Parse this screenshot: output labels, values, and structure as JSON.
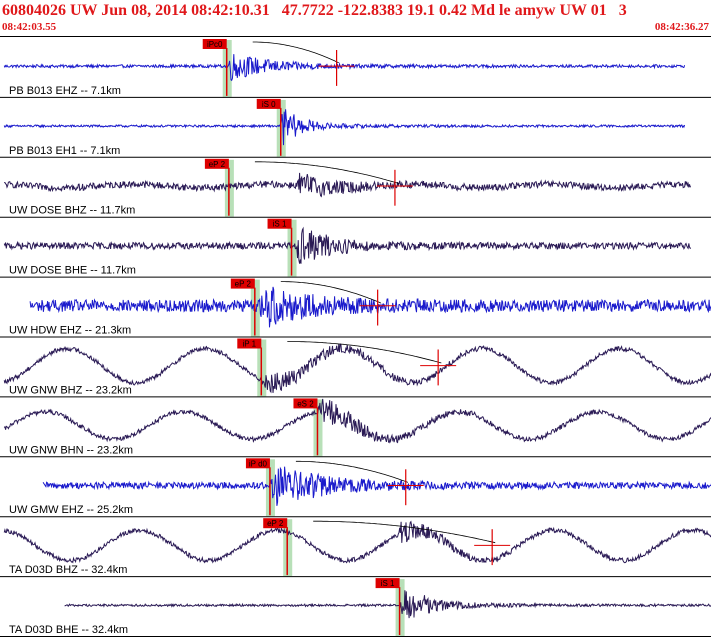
{
  "header": {
    "event_line": "60804026 UW Jun 08, 2014 08:42:10.31   47.7722 -122.8383 19.1 0.42 Md le amyw UW 01   3",
    "start_time": "08:42:03.55",
    "end_time": "08:42:36.27"
  },
  "colors": {
    "header_text": "#e0181b",
    "vertical_trace": "#1a1acc",
    "horizontal_trace": "#2a1a55",
    "pick_marker": "#dd0000",
    "pick_window": "#b8e0b8",
    "coda_curve": "#000000",
    "separator": "#000000"
  },
  "chart_data": {
    "type": "line",
    "title": "60804026 UW Jun 08, 2014 08:42:10.31   47.7722 -122.8383 19.1 0.42 Md le amyw UW 01   3",
    "x_start_label": "08:42:03.55",
    "x_end_label": "08:42:36.27",
    "x_range_seconds": [
      0,
      32.72
    ],
    "series": [
      {
        "name": "PB B013 EHZ -- 7.1km",
        "kind": "vertical",
        "pick": "iPc0",
        "pick_time_s": 10.4,
        "trace_span_s": [
          0.1,
          31.6
        ],
        "energy_s": [
          10.4,
          15.3
        ],
        "amplitude": 0.55,
        "background": 0.05,
        "longperiod": 0.0,
        "has_coda": true
      },
      {
        "name": "PB B013 EH1 -- 7.1km",
        "kind": "horizontal-blue",
        "pick": "iS 0",
        "pick_time_s": 12.9,
        "trace_span_s": [
          0.1,
          31.6
        ],
        "energy_s": [
          12.9,
          15.3
        ],
        "amplitude": 0.75,
        "background": 0.04,
        "longperiod": 0.0,
        "has_coda": false
      },
      {
        "name": "UW DOSE BHZ -- 11.7km",
        "kind": "vertical-dark",
        "pick": "eP 2",
        "pick_time_s": 10.5,
        "trace_span_s": [
          0.1,
          31.9
        ],
        "energy_s": [
          13.6,
          18.0
        ],
        "amplitude": 0.45,
        "background": 0.12,
        "longperiod": 0.06,
        "has_coda": true
      },
      {
        "name": "UW DOSE BHE -- 11.7km",
        "kind": "horizontal",
        "pick": "iS 1",
        "pick_time_s": 13.4,
        "trace_span_s": [
          0.1,
          31.9
        ],
        "energy_s": [
          13.6,
          17.5
        ],
        "amplitude": 0.75,
        "background": 0.12,
        "longperiod": 0.0,
        "has_coda": false
      },
      {
        "name": "UW HDW EHZ -- 21.3km",
        "kind": "vertical",
        "pick": "eP 2",
        "pick_time_s": 11.7,
        "trace_span_s": [
          1.3,
          33.2
        ],
        "energy_s": [
          11.9,
          17.2
        ],
        "amplitude": 0.75,
        "background": 0.22,
        "longperiod": 0.0,
        "has_coda": true
      },
      {
        "name": "UW GNW BHZ -- 23.2km",
        "kind": "horizontal",
        "pick": "iP 1",
        "pick_time_s": 12.0,
        "trace_span_s": [
          0.1,
          33.4
        ],
        "energy_s": [
          12.0,
          20.0
        ],
        "amplitude": 0.35,
        "background": 0.08,
        "longperiod": 0.62,
        "has_coda": true
      },
      {
        "name": "UW GNW BHN -- 23.2km",
        "kind": "horizontal",
        "pick": "eS 2",
        "pick_time_s": 14.6,
        "trace_span_s": [
          0.1,
          33.4
        ],
        "energy_s": [
          14.6,
          19.5
        ],
        "amplitude": 0.55,
        "background": 0.08,
        "longperiod": 0.5,
        "has_coda": false
      },
      {
        "name": "UW GMW EHZ -- 25.2km",
        "kind": "vertical",
        "pick": "iP d0",
        "pick_time_s": 12.4,
        "trace_span_s": [
          1.9,
          33.7
        ],
        "energy_s": [
          12.4,
          18.5
        ],
        "amplitude": 0.8,
        "background": 0.12,
        "longperiod": 0.0,
        "has_coda": true
      },
      {
        "name": "TA D03D BHZ -- 32.4km",
        "kind": "horizontal",
        "pick": "eP 2",
        "pick_time_s": 13.2,
        "trace_span_s": [
          0.1,
          34.6
        ],
        "energy_s": [
          18.3,
          22.5
        ],
        "amplitude": 0.4,
        "background": 0.08,
        "longperiod": 0.55,
        "has_coda": true
      },
      {
        "name": "TA D03D BHE -- 32.4km",
        "kind": "horizontal",
        "pick": "iS 1",
        "pick_time_s": 18.4,
        "trace_span_s": [
          2.9,
          34.6
        ],
        "energy_s": [
          18.4,
          22.0
        ],
        "amplitude": 0.75,
        "background": 0.04,
        "longperiod": 0.0,
        "has_coda": false
      }
    ]
  }
}
